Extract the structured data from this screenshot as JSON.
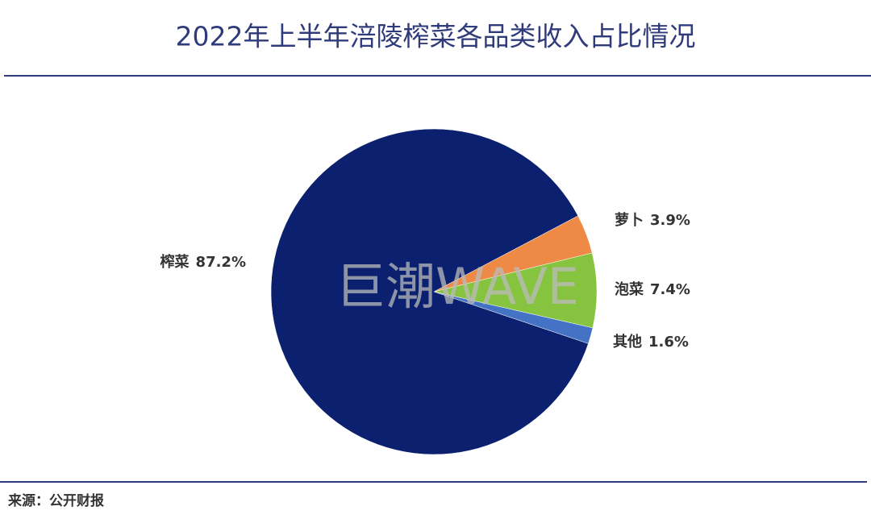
{
  "chart_data": {
    "type": "pie",
    "title": "2022年上半年涪陵榨菜各品类收入占比情况",
    "categories": [
      "萝卜",
      "泡菜",
      "其他",
      "榨菜"
    ],
    "values": [
      3.9,
      7.4,
      1.6,
      87.2
    ],
    "value_labels": [
      "3.9%",
      "7.4%",
      "1.6%",
      "87.2%"
    ],
    "colors": [
      "#ee8a45",
      "#86c43f",
      "#4472c4",
      "#0b2170"
    ],
    "watermark": "巨潮WAVE",
    "source": "来源：公开财报"
  }
}
